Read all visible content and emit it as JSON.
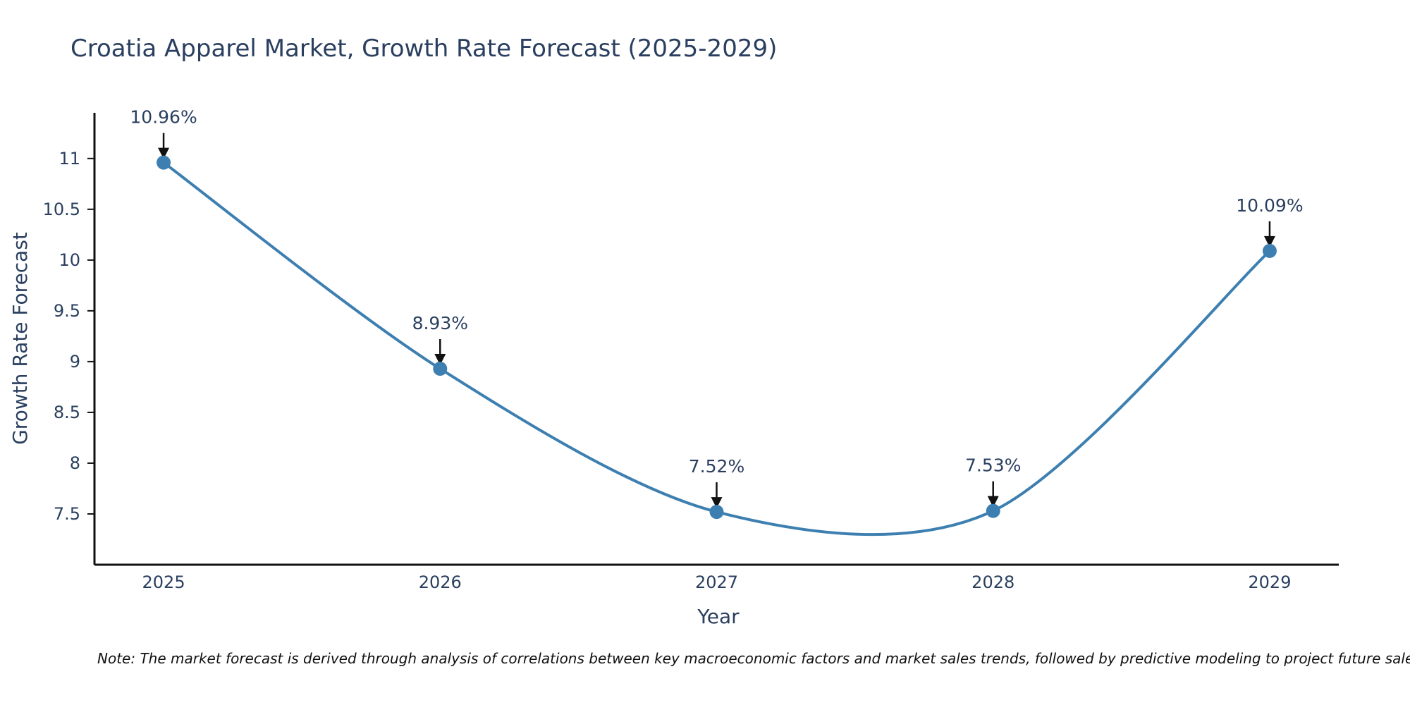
{
  "chart_data": {
    "type": "line",
    "title": "Croatia Apparel Market, Growth Rate Forecast (2025-2029)",
    "xlabel": "Year",
    "ylabel": "Growth Rate Forecast",
    "x": [
      "2025",
      "2026",
      "2027",
      "2028",
      "2029"
    ],
    "series": [
      {
        "name": "Growth Rate Forecast",
        "values": [
          10.96,
          8.93,
          7.52,
          7.53,
          10.09
        ],
        "labels": [
          "10.96%",
          "8.93%",
          "7.52%",
          "7.53%",
          "10.09%"
        ],
        "color": "#3d7fb0"
      }
    ],
    "ylim": [
      7.0,
      11.45
    ],
    "xlim": [
      2024.75,
      2029.25
    ],
    "yticks": [
      7.5,
      8,
      8.5,
      9,
      9.5,
      10,
      10.5,
      11
    ],
    "ytick_labels": [
      "7.5",
      "8",
      "8.5",
      "9",
      "9.5",
      "10",
      "10.5",
      "11"
    ],
    "grid": false,
    "annotation_color": "#111111",
    "note": "Note: The market forecast is derived through analysis of correlations between key macroeconomic factors and market sales trends, followed by predictive modeling to project future sales."
  }
}
